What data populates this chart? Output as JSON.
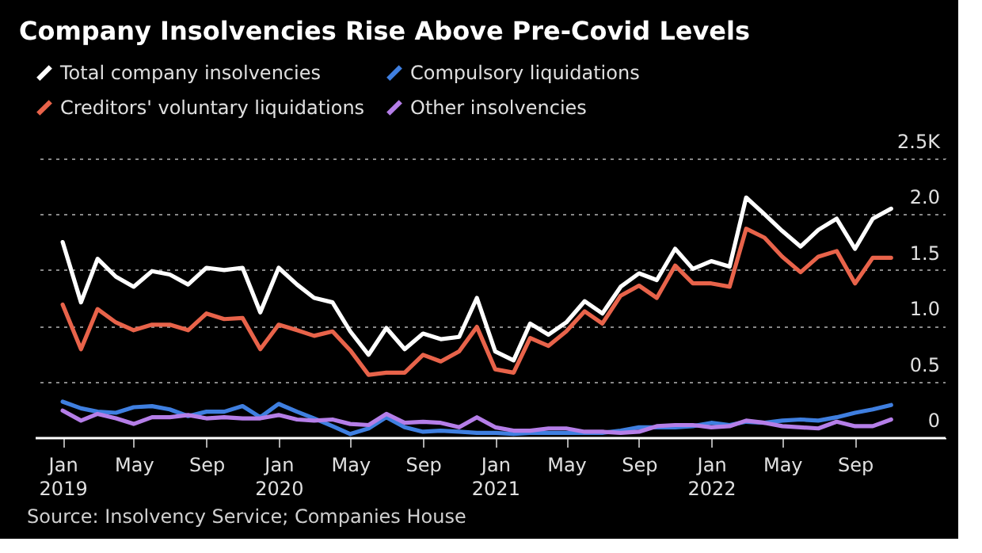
{
  "chart_data": {
    "type": "line",
    "title": "Company Insolvencies Rise Above Pre-Covid Levels",
    "x": [
      "2019-01",
      "2019-02",
      "2019-03",
      "2019-04",
      "2019-05",
      "2019-06",
      "2019-07",
      "2019-08",
      "2019-09",
      "2019-10",
      "2019-11",
      "2019-12",
      "2020-01",
      "2020-02",
      "2020-03",
      "2020-04",
      "2020-05",
      "2020-06",
      "2020-07",
      "2020-08",
      "2020-09",
      "2020-10",
      "2020-11",
      "2020-12",
      "2021-01",
      "2021-02",
      "2021-03",
      "2021-04",
      "2021-05",
      "2021-06",
      "2021-07",
      "2021-08",
      "2021-09",
      "2021-10",
      "2021-11",
      "2021-12",
      "2022-01",
      "2022-02",
      "2022-03",
      "2022-04",
      "2022-05",
      "2022-06",
      "2022-07",
      "2022-08",
      "2022-09",
      "2022-10",
      "2022-11"
    ],
    "series": [
      {
        "name": "Total company insolvencies",
        "color": "#ffffff",
        "values": [
          1.75,
          1.21,
          1.6,
          1.44,
          1.35,
          1.49,
          1.46,
          1.37,
          1.52,
          1.5,
          1.52,
          1.12,
          1.52,
          1.37,
          1.25,
          1.21,
          0.95,
          0.74,
          0.98,
          0.79,
          0.93,
          0.88,
          0.9,
          1.25,
          0.77,
          0.69,
          1.02,
          0.92,
          1.03,
          1.22,
          1.11,
          1.35,
          1.47,
          1.41,
          1.69,
          1.51,
          1.58,
          1.53,
          2.15,
          2.0,
          1.85,
          1.71,
          1.86,
          1.96,
          1.69,
          1.96,
          2.05
        ]
      },
      {
        "name": "Compulsory liquidations",
        "color": "#3f7fe0",
        "values": [
          0.32,
          0.26,
          0.23,
          0.22,
          0.27,
          0.28,
          0.25,
          0.19,
          0.23,
          0.23,
          0.28,
          0.18,
          0.3,
          0.23,
          0.17,
          0.1,
          0.03,
          0.08,
          0.18,
          0.09,
          0.05,
          0.06,
          0.05,
          0.04,
          0.04,
          0.03,
          0.04,
          0.04,
          0.04,
          0.04,
          0.04,
          0.06,
          0.09,
          0.09,
          0.09,
          0.1,
          0.13,
          0.11,
          0.14,
          0.13,
          0.15,
          0.16,
          0.15,
          0.18,
          0.22,
          0.25,
          0.29
        ]
      },
      {
        "name": "Creditors' voluntary liquidations",
        "color": "#e8634a",
        "values": [
          1.19,
          0.79,
          1.15,
          1.03,
          0.96,
          1.01,
          1.01,
          0.96,
          1.11,
          1.06,
          1.07,
          0.79,
          1.01,
          0.96,
          0.91,
          0.95,
          0.78,
          0.56,
          0.58,
          0.58,
          0.74,
          0.68,
          0.77,
          0.99,
          0.61,
          0.58,
          0.89,
          0.82,
          0.95,
          1.13,
          1.02,
          1.27,
          1.36,
          1.25,
          1.54,
          1.38,
          1.38,
          1.35,
          1.87,
          1.79,
          1.62,
          1.48,
          1.62,
          1.67,
          1.38,
          1.61,
          1.61
        ]
      },
      {
        "name": "Other insolvencies",
        "color": "#b57ee8",
        "values": [
          0.24,
          0.15,
          0.21,
          0.17,
          0.12,
          0.18,
          0.18,
          0.2,
          0.17,
          0.18,
          0.17,
          0.17,
          0.2,
          0.16,
          0.15,
          0.16,
          0.12,
          0.11,
          0.21,
          0.13,
          0.14,
          0.13,
          0.09,
          0.18,
          0.09,
          0.06,
          0.06,
          0.08,
          0.08,
          0.05,
          0.05,
          0.04,
          0.05,
          0.1,
          0.11,
          0.11,
          0.09,
          0.1,
          0.15,
          0.13,
          0.1,
          0.09,
          0.08,
          0.14,
          0.1,
          0.1,
          0.16
        ]
      }
    ],
    "xlim": [
      "2018-11-15",
      "2023-02-01"
    ],
    "xticks": [
      {
        "value": "2019-01",
        "label": "Jan 2019"
      },
      {
        "value": "2019-05",
        "label": "May"
      },
      {
        "value": "2019-09",
        "label": "Sep"
      },
      {
        "value": "2020-01",
        "label": "Jan 2020"
      },
      {
        "value": "2020-05",
        "label": "May"
      },
      {
        "value": "2020-09",
        "label": "Sep"
      },
      {
        "value": "2021-01",
        "label": "Jan 2021"
      },
      {
        "value": "2021-05",
        "label": "May"
      },
      {
        "value": "2021-09",
        "label": "Sep"
      },
      {
        "value": "2022-01",
        "label": "Jan 2022"
      },
      {
        "value": "2022-05",
        "label": "May"
      },
      {
        "value": "2022-09",
        "label": "Sep"
      }
    ],
    "ylim": [
      0,
      2.5
    ],
    "yticks": [
      0,
      0.5,
      {
        "value": 1,
        "label": "1.0"
      },
      1.5,
      {
        "value": 2,
        "label": "2.0"
      },
      {
        "value": 2.5,
        "label": "2.5K"
      }
    ],
    "grid": "y",
    "legend": "top left",
    "line_style": "solid",
    "marker": "none",
    "annotations": [
      "Source: Insolvency Service; Companies House"
    ]
  }
}
